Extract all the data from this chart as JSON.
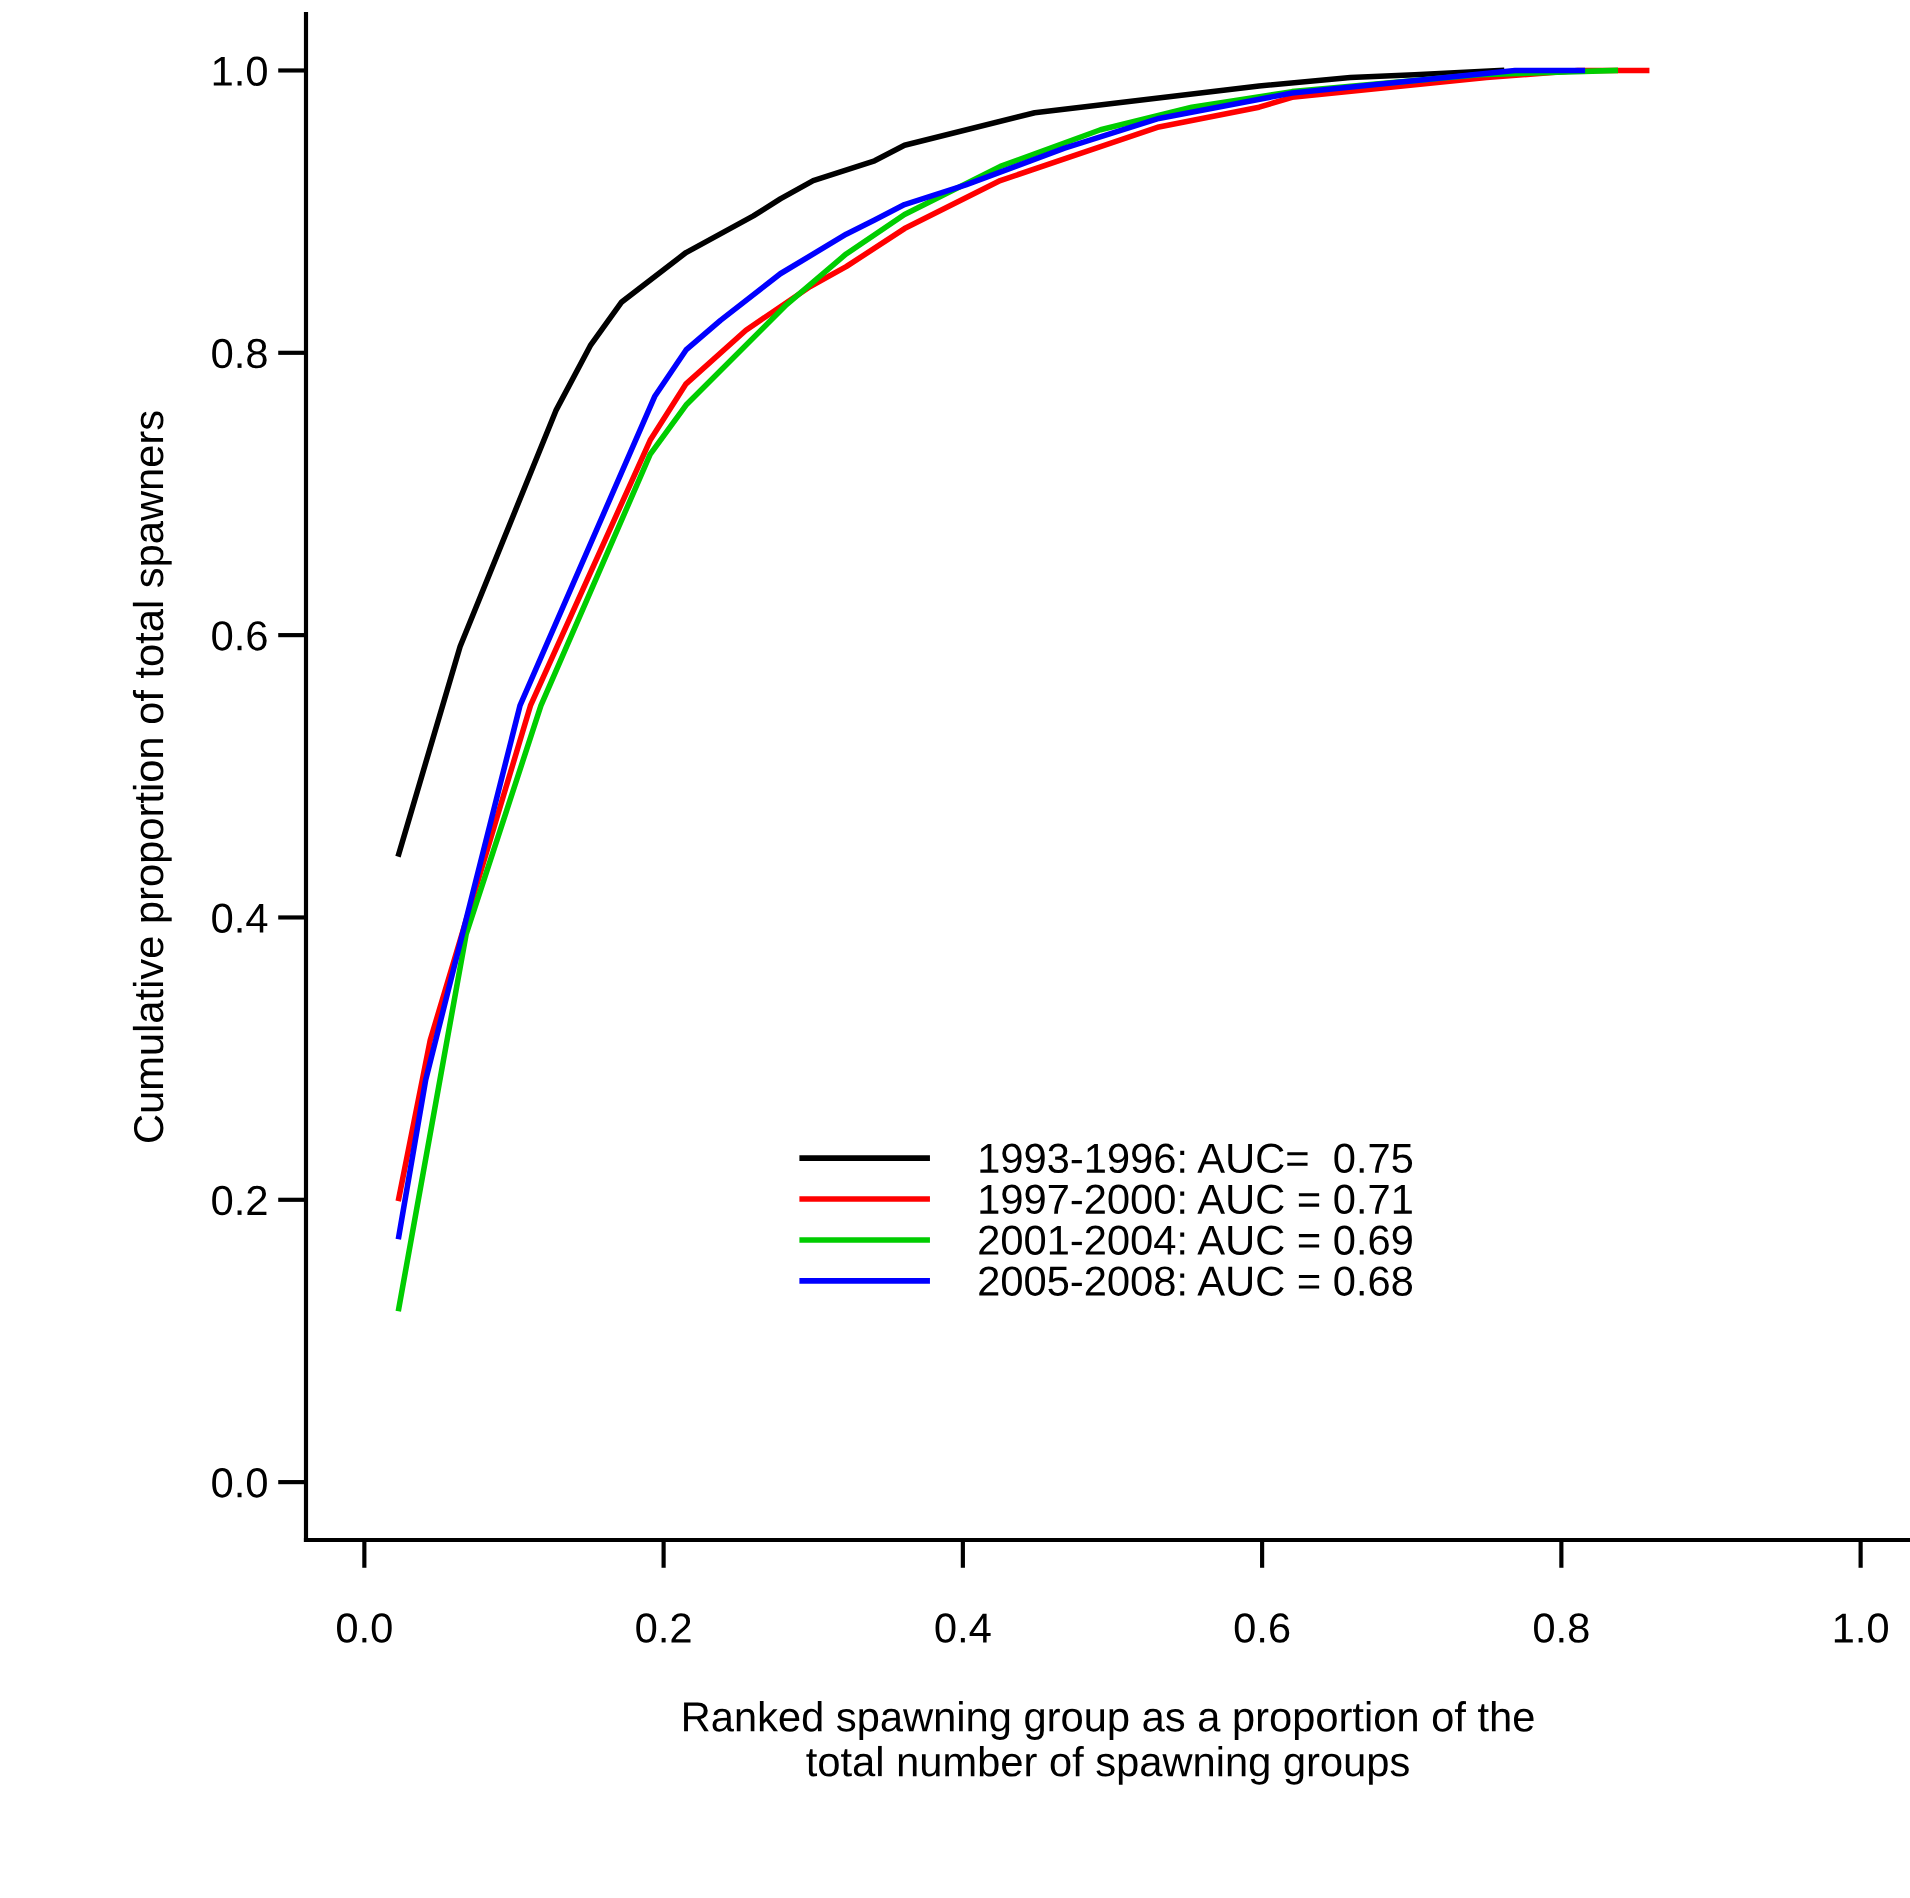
{
  "chart_data": {
    "type": "line",
    "xlabel": "Ranked spawning group as a proportion of the\ntotal number of spawning groups",
    "ylabel": "Cumulative proportion of total spawners",
    "xlim": [
      -0.039,
      1.033
    ],
    "ylim": [
      -0.041,
      1.04
    ],
    "xticks": [
      {
        "value": 0,
        "label": "0.0"
      },
      0.2,
      0.4,
      0.6,
      0.8,
      {
        "value": 1,
        "label": "1.0"
      }
    ],
    "yticks": [
      {
        "value": 0,
        "label": "0.0"
      },
      0.2,
      0.4,
      0.6,
      0.8,
      {
        "value": 1,
        "label": "1.0"
      }
    ],
    "grid": false,
    "legend": "bottom",
    "marker": "none",
    "line_style": "solid",
    "series": [
      {
        "name": "1993-1996: AUC=  0.75",
        "color": "#000000",
        "x": [
          0.023,
          0.064,
          0.128,
          0.151,
          0.172,
          0.215,
          0.26,
          0.278,
          0.3,
          0.341,
          0.361,
          0.448,
          0.598,
          0.659,
          0.702,
          0.76
        ],
        "values": [
          0.445,
          0.592,
          0.759,
          0.805,
          0.836,
          0.871,
          0.897,
          0.909,
          0.922,
          0.936,
          0.947,
          0.97,
          0.989,
          0.995,
          0.997,
          1.0
        ]
      },
      {
        "name": "1997-2000: AUC = 0.71",
        "color": "#ff0000",
        "x": [
          0.023,
          0.044,
          0.111,
          0.191,
          0.215,
          0.255,
          0.298,
          0.322,
          0.361,
          0.425,
          0.492,
          0.531,
          0.598,
          0.62,
          0.75,
          0.811,
          0.857
        ],
        "values": [
          0.201,
          0.313,
          0.55,
          0.738,
          0.778,
          0.816,
          0.847,
          0.861,
          0.888,
          0.922,
          0.946,
          0.96,
          0.974,
          0.981,
          0.995,
          1.0,
          1.0
        ]
      },
      {
        "name": "2001-2004: AUC = 0.69",
        "color": "#00cd00",
        "x": [
          0.023,
          0.068,
          0.118,
          0.191,
          0.215,
          0.282,
          0.322,
          0.361,
          0.425,
          0.492,
          0.553,
          0.62,
          0.745,
          0.836
        ],
        "values": [
          0.123,
          0.388,
          0.55,
          0.728,
          0.763,
          0.834,
          0.87,
          0.898,
          0.932,
          0.958,
          0.974,
          0.985,
          0.997,
          1.0
        ]
      },
      {
        "name": "2005-2008: AUC = 0.68",
        "color": "#0000ff",
        "x": [
          0.023,
          0.041,
          0.104,
          0.194,
          0.215,
          0.238,
          0.278,
          0.322,
          0.341,
          0.361,
          0.402,
          0.468,
          0.531,
          0.62,
          0.769,
          0.814
        ],
        "values": [
          0.174,
          0.285,
          0.55,
          0.769,
          0.802,
          0.823,
          0.856,
          0.884,
          0.894,
          0.905,
          0.919,
          0.945,
          0.966,
          0.984,
          1.0,
          1.0
        ]
      }
    ]
  }
}
